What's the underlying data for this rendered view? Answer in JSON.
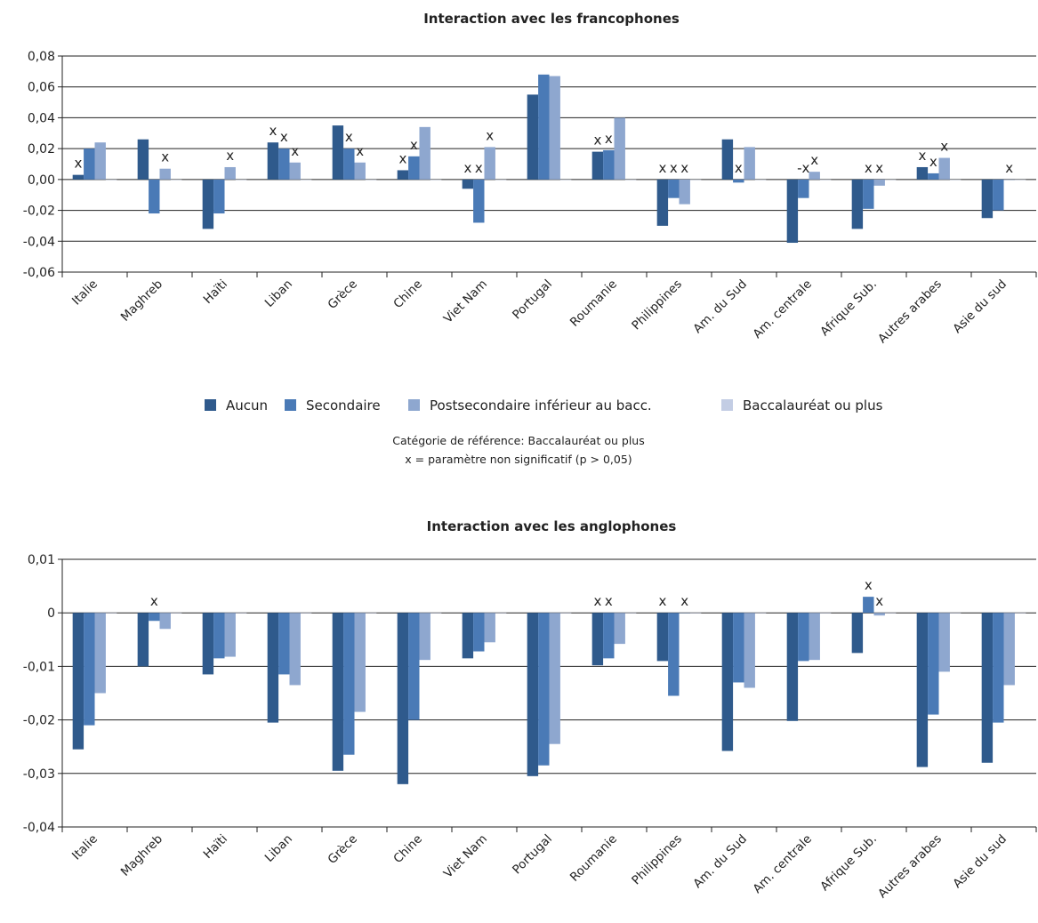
{
  "legend": [
    "Aucun",
    "Secondaire",
    "Postsecondaire inférieur au bacc.",
    "Baccalauréat ou plus"
  ],
  "colors": [
    "#2f5a8c",
    "#4a7ab6",
    "#8ea7cf",
    "#c3cde4"
  ],
  "notes": {
    "reference": "Catégorie de  référence: Baccalauréat ou plus",
    "significance": "x = paramètre non significatif  (p > 0,05)"
  },
  "chart_data": [
    {
      "type": "bar",
      "title": "Interaction avec les francophones",
      "categories": [
        "Italie",
        "Maghreb",
        "Haïti",
        "Liban",
        "Grèce",
        "Chine",
        "Viet Nam",
        "Portugal",
        "Roumanie",
        "Philippines",
        "Am. du Sud",
        "Am. centrale",
        "Afrique Sub.",
        "Autres arabes",
        "Asie du sud"
      ],
      "ylim": [
        -0.06,
        0.08
      ],
      "yticks": [
        -0.06,
        -0.04,
        -0.02,
        0.0,
        0.02,
        0.04,
        0.06,
        0.08
      ],
      "ytick_labels": [
        "-0,06",
        "-0,04",
        "-0,02",
        "0,00",
        "0,02",
        "0,04",
        "0,06",
        "0,08"
      ],
      "grid": true,
      "series": [
        {
          "name": "Aucun",
          "values": [
            0.003,
            0.026,
            -0.032,
            0.024,
            0.035,
            0.006,
            -0.006,
            0.055,
            0.018,
            -0.03,
            0.026,
            -0.041,
            -0.032,
            0.008,
            -0.025
          ]
        },
        {
          "name": "Secondaire",
          "values": [
            0.02,
            -0.022,
            -0.022,
            0.02,
            0.02,
            0.015,
            -0.028,
            0.068,
            0.019,
            -0.012,
            -0.002,
            -0.012,
            -0.019,
            0.004,
            -0.02
          ]
        },
        {
          "name": "Postsecondaire inférieur au bacc.",
          "values": [
            0.024,
            0.007,
            0.008,
            0.011,
            0.011,
            0.034,
            0.021,
            0.067,
            0.04,
            -0.016,
            0.021,
            0.005,
            -0.004,
            0.014,
            0.0
          ]
        },
        {
          "name": "Baccalauréat ou plus",
          "values": [
            0.0,
            0.0,
            0.0,
            0.0,
            0.0,
            0.0,
            0.0,
            0.0,
            0.0,
            0.0,
            0.0,
            0.0,
            0.0,
            0.0,
            0.0
          ]
        }
      ],
      "annotations": [
        {
          "category": "Italie",
          "series": 0,
          "text": "x"
        },
        {
          "category": "Maghreb",
          "series": 2,
          "text": "x"
        },
        {
          "category": "Haïti",
          "series": 2,
          "text": "x"
        },
        {
          "category": "Liban",
          "series": 0,
          "text": "x"
        },
        {
          "category": "Liban",
          "series": 1,
          "text": "x"
        },
        {
          "category": "Liban",
          "series": 2,
          "text": "x"
        },
        {
          "category": "Grèce",
          "series": 1,
          "text": "x"
        },
        {
          "category": "Grèce",
          "series": 2,
          "text": "x"
        },
        {
          "category": "Chine",
          "series": 0,
          "text": "x"
        },
        {
          "category": "Chine",
          "series": 1,
          "text": "x"
        },
        {
          "category": "Viet Nam",
          "series": 0,
          "text": "x"
        },
        {
          "category": "Viet Nam",
          "series": 1,
          "text": "x"
        },
        {
          "category": "Viet Nam",
          "series": 2,
          "text": "x"
        },
        {
          "category": "Roumanie",
          "series": 0,
          "text": "x"
        },
        {
          "category": "Roumanie",
          "series": 1,
          "text": "x"
        },
        {
          "category": "Philippines",
          "series": 0,
          "text": "x"
        },
        {
          "category": "Philippines",
          "series": 1,
          "text": "x"
        },
        {
          "category": "Philippines",
          "series": 2,
          "text": "x"
        },
        {
          "category": "Am. du Sud",
          "series": 1,
          "text": "x"
        },
        {
          "category": "Am. centrale",
          "series": 1,
          "text": "-x"
        },
        {
          "category": "Am. centrale",
          "series": 2,
          "text": "x"
        },
        {
          "category": "Afrique Sub.",
          "series": 1,
          "text": "x"
        },
        {
          "category": "Afrique Sub.",
          "series": 2,
          "text": "x"
        },
        {
          "category": "Autres arabes",
          "series": 0,
          "text": "x"
        },
        {
          "category": "Autres arabes",
          "series": 1,
          "text": "x"
        },
        {
          "category": "Autres arabes",
          "series": 2,
          "text": "x"
        },
        {
          "category": "Asie du sud",
          "series": 2,
          "text": "x"
        }
      ]
    },
    {
      "type": "bar",
      "title": "Interaction avec les anglophones",
      "categories": [
        "Italie",
        "Maghreb",
        "Haïti",
        "Liban",
        "Grèce",
        "Chine",
        "Viet Nam",
        "Portugal",
        "Roumanie",
        "Philippines",
        "Am. du Sud",
        "Am. centrale",
        "Afrique Sub.",
        "Autres arabes",
        "Asie du sud"
      ],
      "ylim": [
        -0.04,
        0.01
      ],
      "yticks": [
        -0.04,
        -0.03,
        -0.02,
        -0.01,
        0.0,
        0.01
      ],
      "ytick_labels": [
        "-0,04",
        "-0,03",
        "-0,02",
        "-0,01",
        "0",
        "0,01"
      ],
      "grid": true,
      "series": [
        {
          "name": "Aucun",
          "values": [
            -0.0255,
            -0.01,
            -0.0115,
            -0.0205,
            -0.0295,
            -0.032,
            -0.0085,
            -0.0305,
            -0.0098,
            -0.009,
            -0.0258,
            -0.0202,
            -0.0075,
            -0.0288,
            -0.028
          ]
        },
        {
          "name": "Secondaire",
          "values": [
            -0.021,
            -0.0015,
            -0.0085,
            -0.0115,
            -0.0265,
            -0.02,
            -0.0072,
            -0.0285,
            -0.0085,
            -0.0155,
            -0.013,
            -0.009,
            0.003,
            -0.019,
            -0.0205
          ]
        },
        {
          "name": "Postsecondaire inférieur au bacc.",
          "values": [
            -0.015,
            -0.003,
            -0.0082,
            -0.0135,
            -0.0185,
            -0.0088,
            -0.0055,
            -0.0245,
            -0.0058,
            0.0,
            -0.014,
            -0.0088,
            -0.0005,
            -0.011,
            -0.0135
          ]
        },
        {
          "name": "Baccalauréat ou plus",
          "values": [
            0.0,
            0.0,
            0.0,
            0.0,
            0.0,
            0.0,
            0.0,
            0.0,
            0.0,
            0.0,
            0.0,
            0.0,
            0.0,
            0.0,
            0.0
          ]
        }
      ],
      "annotations": [
        {
          "category": "Maghreb",
          "series": 1,
          "text": "x"
        },
        {
          "category": "Roumanie",
          "series": 0,
          "text": "x"
        },
        {
          "category": "Roumanie",
          "series": 1,
          "text": "x"
        },
        {
          "category": "Philippines",
          "series": 0,
          "text": "x"
        },
        {
          "category": "Philippines",
          "series": 2,
          "text": "x"
        },
        {
          "category": "Afrique Sub.",
          "series": 1,
          "text": "x"
        },
        {
          "category": "Afrique Sub.",
          "series": 2,
          "text": "x"
        }
      ]
    }
  ]
}
